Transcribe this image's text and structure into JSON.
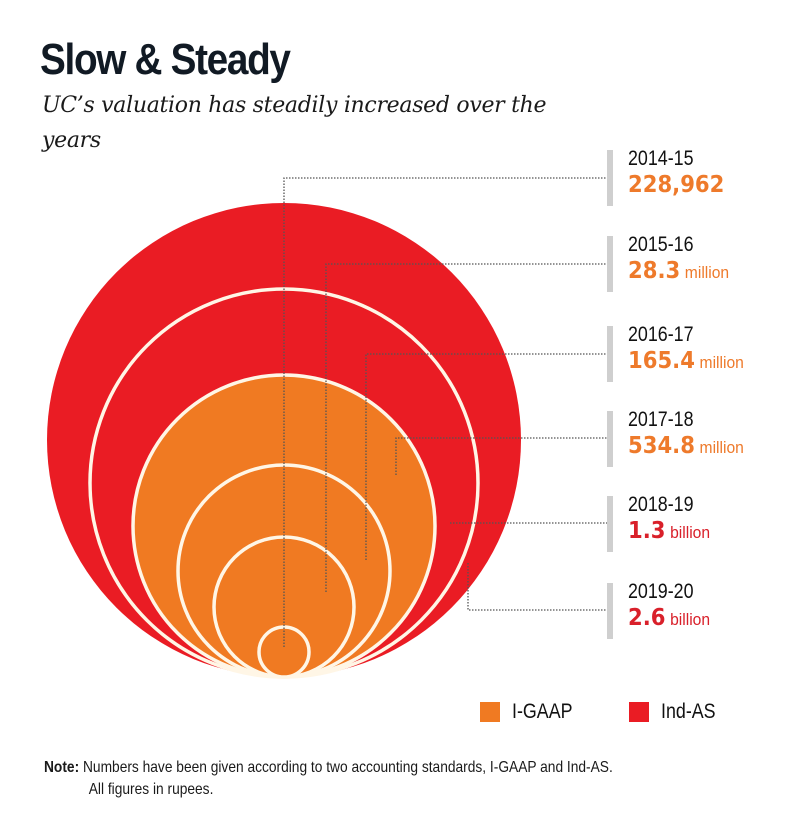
{
  "header": {
    "title": "Slow & Steady",
    "subtitle": "UC’s valuation has steadily increased over the years"
  },
  "colors": {
    "igaap": "#f07a22",
    "indas": "#ea1c24",
    "ring_stroke": "#fff6e6",
    "leader": "#555555",
    "bar": "#cfcfcf",
    "year_text": "#111111"
  },
  "chart_data": {
    "type": "nested-circles",
    "title": "Slow & Steady",
    "subtitle": "UC’s valuation has steadily increased over the years",
    "unit": "rupees",
    "series": [
      {
        "year": "2014-15",
        "value": 228962,
        "display_value": "228,962",
        "display_unit": "",
        "standard": "I-GAAP"
      },
      {
        "year": "2015-16",
        "value": 28300000,
        "display_value": "28.3",
        "display_unit": "million",
        "standard": "I-GAAP"
      },
      {
        "year": "2016-17",
        "value": 165400000,
        "display_value": "165.4",
        "display_unit": "million",
        "standard": "I-GAAP"
      },
      {
        "year": "2017-18",
        "value": 534800000,
        "display_value": "534.8",
        "display_unit": "million",
        "standard": "I-GAAP"
      },
      {
        "year": "2018-19",
        "value": 1300000000,
        "display_value": "1.3",
        "display_unit": "billion",
        "standard": "Ind-AS"
      },
      {
        "year": "2019-20",
        "value": 2600000000,
        "display_value": "2.6",
        "display_unit": "billion",
        "standard": "Ind-AS"
      }
    ],
    "legend": {
      "position": "bottom-right",
      "items": [
        {
          "label": "I-GAAP",
          "color": "#f07a22"
        },
        {
          "label": "Ind-AS",
          "color": "#ea1c24"
        }
      ]
    }
  },
  "labels": [
    {
      "year": "2014-15",
      "value": "228,962",
      "unit": "",
      "color": "#ee7a2b"
    },
    {
      "year": "2015-16",
      "value": "28.3",
      "unit": "million",
      "color": "#ee7a2b"
    },
    {
      "year": "2016-17",
      "value": "165.4",
      "unit": "million",
      "color": "#ee7a2b"
    },
    {
      "year": "2017-18",
      "value": "534.8",
      "unit": "million",
      "color": "#ee7a2b"
    },
    {
      "year": "2018-19",
      "value": "1.3",
      "unit": "billion",
      "color": "#d9202a"
    },
    {
      "year": "2019-20",
      "value": "2.6",
      "unit": "billion",
      "color": "#d9202a"
    }
  ],
  "legend": {
    "items": [
      {
        "label": "I-GAAP",
        "color": "#f07a22"
      },
      {
        "label": "Ind-AS",
        "color": "#ea1c24"
      }
    ]
  },
  "note": {
    "key": "Note:",
    "line1": " Numbers have been given according to two accounting standards, I-GAAP and Ind-AS.",
    "line2": "All figures in rupees."
  }
}
